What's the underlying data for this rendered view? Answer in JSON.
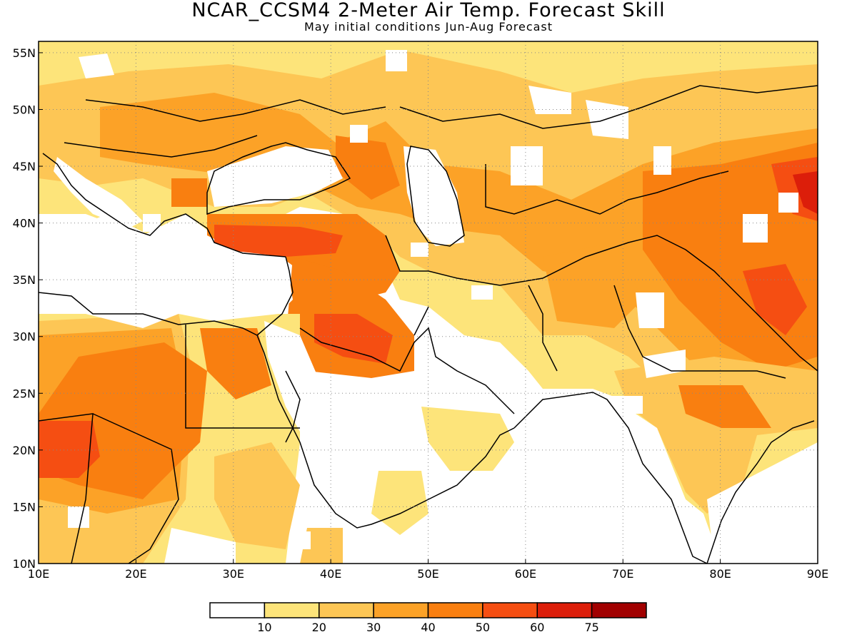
{
  "title": "NCAR_CCSM4 2-Meter Air Temp. Forecast Skill",
  "subtitle": "May initial conditions  Jun-Aug Forecast",
  "map": {
    "lon_range": [
      10,
      90
    ],
    "lat_range": [
      10,
      56
    ],
    "x_ticks": [
      {
        "value": 10,
        "label": "10E"
      },
      {
        "value": 20,
        "label": "20E"
      },
      {
        "value": 30,
        "label": "30E"
      },
      {
        "value": 40,
        "label": "40E"
      },
      {
        "value": 50,
        "label": "50E"
      },
      {
        "value": 60,
        "label": "60E"
      },
      {
        "value": 70,
        "label": "70E"
      },
      {
        "value": 80,
        "label": "80E"
      },
      {
        "value": 90,
        "label": "90E"
      }
    ],
    "y_ticks": [
      {
        "value": 10,
        "label": "10N"
      },
      {
        "value": 15,
        "label": "15N"
      },
      {
        "value": 20,
        "label": "20N"
      },
      {
        "value": 25,
        "label": "25N"
      },
      {
        "value": 30,
        "label": "30N"
      },
      {
        "value": 35,
        "label": "35N"
      },
      {
        "value": 40,
        "label": "40N"
      },
      {
        "value": 45,
        "label": "45N"
      },
      {
        "value": 50,
        "label": "50N"
      },
      {
        "value": 55,
        "label": "55N"
      }
    ],
    "grid": "dotted"
  },
  "colorbar": {
    "colors": [
      "#ffffff",
      "#fde47a",
      "#fdc655",
      "#fca227",
      "#f97f10",
      "#f54e12",
      "#dc1e0a",
      "#a10000"
    ],
    "labels": [
      "10",
      "20",
      "30",
      "40",
      "50",
      "60",
      "75"
    ]
  }
}
